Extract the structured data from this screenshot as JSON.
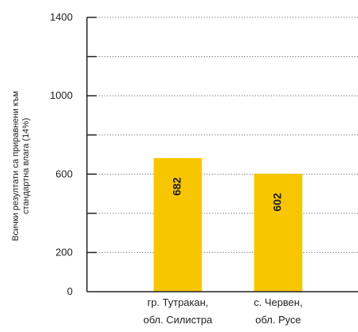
{
  "chart_data": {
    "type": "bar",
    "categories": [
      [
        "гр. Тутракан,",
        "обл. Силистра"
      ],
      [
        "с. Червен,",
        "обл. Русе"
      ]
    ],
    "values": [
      682,
      602
    ],
    "data_labels": [
      "682",
      "602"
    ],
    "ylabel": [
      "Всички резултати са приравнени към",
      "стандартна влага (14%)"
    ],
    "ylim": [
      0,
      1400
    ],
    "gridlines": [
      200,
      400,
      600,
      800,
      1000,
      1200,
      1400
    ],
    "y_tick_labels": [
      {
        "value": 0,
        "label": "0"
      },
      {
        "value": 200,
        "label": "200"
      },
      {
        "value": 600,
        "label": "600"
      },
      {
        "value": 1000,
        "label": "1000"
      },
      {
        "value": 1400,
        "label": "1400"
      }
    ],
    "grid": true,
    "bar_color": "#F7C600",
    "grid_color": "#666666",
    "axis_color": "#222222"
  }
}
